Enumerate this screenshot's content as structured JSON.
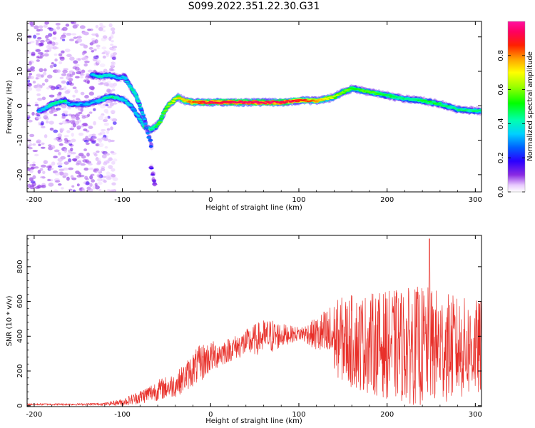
{
  "title": "S099.2022.351.22.30.G31",
  "chart_data": [
    {
      "type": "heatmap",
      "xlabel": "Height of straight line (km)",
      "ylabel": "Frequency (Hz)",
      "xlim": [
        -208,
        307
      ],
      "ylim": [
        -25,
        24.5
      ],
      "x_ticks": [
        -200,
        -100,
        0,
        100,
        200,
        300
      ],
      "x_tick_labels": [
        "-200",
        "-100",
        "0",
        "100",
        "200",
        "300"
      ],
      "y_ticks": [
        -20,
        -10,
        0,
        10,
        20
      ],
      "y_tick_labels": [
        "-20",
        "-10",
        "0",
        "10",
        "20"
      ],
      "colorbar": {
        "label": "Normalized spectral amplitude",
        "range": [
          0,
          1
        ],
        "ticks": [
          0.0,
          0.2,
          0.4,
          0.6,
          0.8
        ],
        "tick_labels": [
          "0.0",
          "0.2",
          "0.4",
          "0.6",
          "0.8"
        ],
        "colormap": "gist_ncar-like (white→purple→blue→cyan→green→yellow→orange→red→magenta)"
      },
      "noise_region_x": [
        -208,
        -128
      ],
      "tracks": [
        {
          "name": "main",
          "points": [
            [
              -195,
              -1.5
            ],
            [
              -188,
              -1
            ],
            [
              -180,
              0.5
            ],
            [
              -172,
              1
            ],
            [
              -165,
              1.5
            ],
            [
              -160,
              0.5
            ],
            [
              -150,
              0.5
            ],
            [
              -140,
              0.5
            ],
            [
              -135,
              1
            ],
            [
              -125,
              1.5
            ],
            [
              -118,
              2.5
            ],
            [
              -110,
              2.5
            ],
            [
              -100,
              2
            ],
            [
              -90,
              0
            ],
            [
              -85,
              -2
            ],
            [
              -80,
              -4
            ],
            [
              -75,
              -6
            ],
            [
              -68,
              -7
            ],
            [
              -62,
              -6
            ],
            [
              -58,
              -5
            ],
            [
              -53,
              -2
            ],
            [
              -48,
              0
            ],
            [
              -42,
              1.5
            ],
            [
              -37,
              2.5
            ],
            [
              -30,
              1.5
            ],
            [
              -20,
              1
            ],
            [
              0,
              1
            ],
            [
              20,
              1
            ],
            [
              40,
              1
            ],
            [
              60,
              1
            ],
            [
              80,
              1
            ],
            [
              100,
              1.5
            ],
            [
              120,
              1.5
            ],
            [
              140,
              2.5
            ],
            [
              150,
              4
            ],
            [
              160,
              5
            ],
            [
              170,
              4.5
            ],
            [
              180,
              4
            ],
            [
              200,
              3
            ],
            [
              220,
              2
            ],
            [
              240,
              1.5
            ],
            [
              260,
              0.5
            ],
            [
              280,
              -1
            ],
            [
              300,
              -1.5
            ],
            [
              307,
              -1.5
            ]
          ],
          "amplitude": [
            0.3,
            0.3,
            0.4,
            0.4,
            0.4,
            0.3,
            0.3,
            0.3,
            0.3,
            0.35,
            0.4,
            0.4,
            0.35,
            0.3,
            0.3,
            0.35,
            0.4,
            0.4,
            0.45,
            0.5,
            0.5,
            0.55,
            0.6,
            0.65,
            0.7,
            0.75,
            0.85,
            0.85,
            0.85,
            0.85,
            0.85,
            0.8,
            0.7,
            0.6,
            0.55,
            0.5,
            0.5,
            0.5,
            0.45,
            0.4,
            0.45,
            0.45,
            0.4,
            0.4,
            0.4
          ]
        },
        {
          "name": "upper",
          "points": [
            [
              -135,
              9
            ],
            [
              -125,
              8.5
            ],
            [
              -115,
              9
            ],
            [
              -105,
              8
            ],
            [
              -98,
              8.5
            ],
            [
              -92,
              6
            ],
            [
              -85,
              3
            ],
            [
              -80,
              0
            ],
            [
              -75,
              -4
            ],
            [
              -70,
              -9
            ],
            [
              -67,
              -12
            ]
          ],
          "amplitude": [
            0.3,
            0.35,
            0.35,
            0.3,
            0.3,
            0.35,
            0.4,
            0.35,
            0.3,
            0.25,
            0.2
          ]
        },
        {
          "name": "tail",
          "points": [
            [
              -67,
              -18
            ],
            [
              -65,
              -21
            ],
            [
              -63,
              -23
            ]
          ],
          "amplitude": [
            0.15,
            0.12,
            0.1
          ]
        }
      ]
    },
    {
      "type": "line",
      "xlabel": "Height of straight line (km)",
      "ylabel": "SNR (10 * v/v)",
      "xlim": [
        -208,
        307
      ],
      "ylim": [
        -5,
        980
      ],
      "x_ticks": [
        -200,
        -100,
        0,
        100,
        200,
        300
      ],
      "x_tick_labels": [
        "-200",
        "-100",
        "0",
        "100",
        "200",
        "300"
      ],
      "y_ticks": [
        0,
        200,
        400,
        600,
        800
      ],
      "y_tick_labels": [
        "0",
        "200",
        "400",
        "600",
        "800"
      ],
      "color": "#e8302a",
      "envelope_x": [
        -208,
        -150,
        -120,
        -100,
        -80,
        -60,
        -40,
        -30,
        -20,
        -10,
        0,
        10,
        20,
        30,
        40,
        50,
        60,
        70,
        80,
        90,
        100,
        110,
        120,
        130,
        140,
        150,
        160,
        170,
        180,
        190,
        200,
        210,
        220,
        230,
        240,
        250,
        260,
        270,
        280,
        290,
        300,
        307
      ],
      "envelope_mean": [
        8,
        8,
        10,
        20,
        50,
        90,
        120,
        160,
        210,
        250,
        280,
        300,
        320,
        340,
        360,
        380,
        395,
        400,
        405,
        410,
        415,
        415,
        410,
        400,
        390,
        380,
        370,
        360,
        360,
        355,
        350,
        350,
        345,
        345,
        340,
        340,
        340,
        335,
        330,
        330,
        330,
        330
      ],
      "envelope_amp": [
        6,
        6,
        8,
        20,
        40,
        60,
        70,
        80,
        100,
        110,
        90,
        80,
        70,
        70,
        80,
        90,
        100,
        100,
        70,
        50,
        40,
        60,
        100,
        160,
        210,
        250,
        270,
        280,
        290,
        300,
        310,
        320,
        330,
        340,
        350,
        340,
        330,
        310,
        300,
        290,
        280,
        280
      ],
      "peak": {
        "x": 248,
        "y": 960
      }
    }
  ]
}
